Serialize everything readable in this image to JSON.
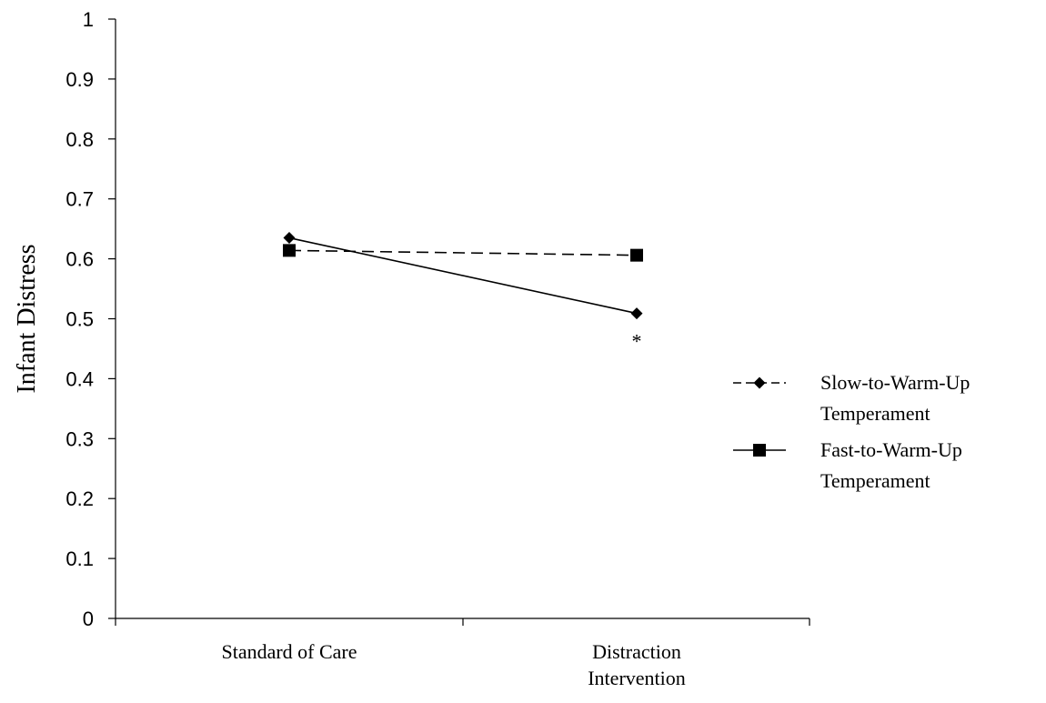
{
  "chart_data": {
    "type": "line",
    "title": "",
    "xlabel": "",
    "ylabel": "Infant Distress",
    "ylim": [
      0,
      1
    ],
    "yticks": [
      "0",
      "0.1",
      "0.2",
      "0.3",
      "0.4",
      "0.5",
      "0.6",
      "0.7",
      "0.8",
      "0.9",
      "1"
    ],
    "categories": [
      [
        "Standard of Care"
      ],
      [
        "Distraction",
        "Intervention"
      ]
    ],
    "series": [
      {
        "name_lines": [
          "Slow-to-Warm-Up",
          "Temperament"
        ],
        "values": [
          0.635,
          0.509
        ],
        "marker": "diamond",
        "line_style": "solid",
        "legend_line_style": "dashed",
        "color": "#000000"
      },
      {
        "name_lines": [
          "Fast-to-Warm-Up",
          "Temperament"
        ],
        "values": [
          0.614,
          0.606
        ],
        "marker": "square",
        "line_style": "dashed",
        "legend_line_style": "solid",
        "color": "#000000"
      }
    ],
    "annotations": [
      {
        "text": "*",
        "category_index": 1,
        "near_value": 0.509
      }
    ],
    "legend_position": "right",
    "grid": false
  }
}
